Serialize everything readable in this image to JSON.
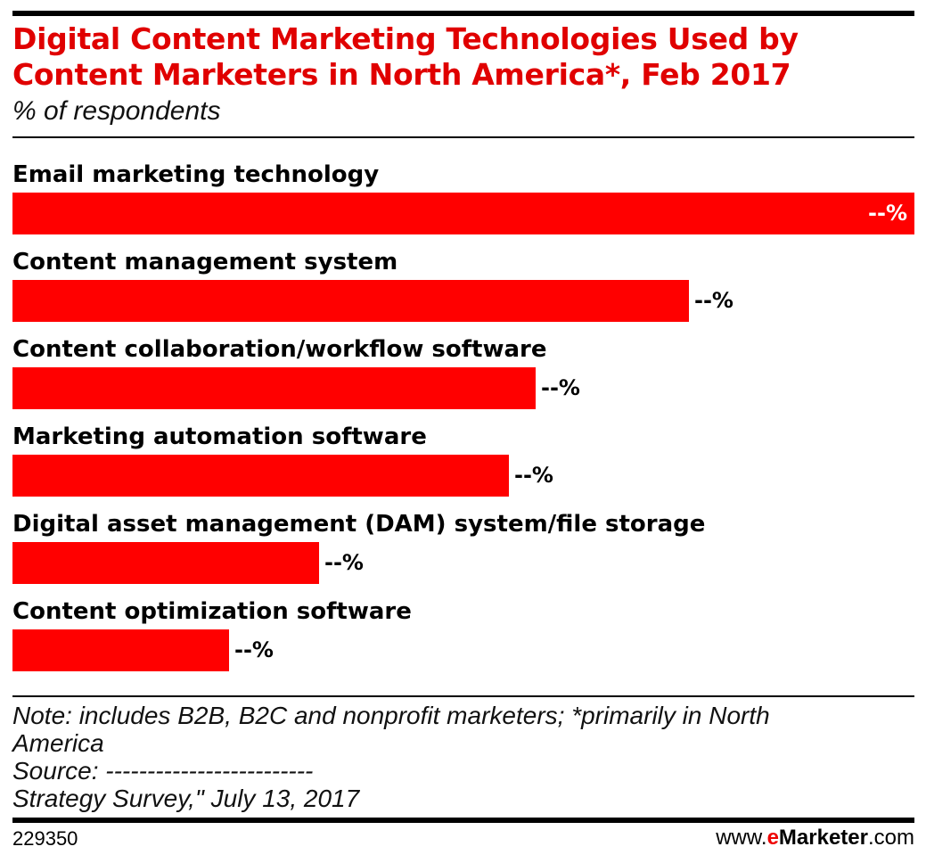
{
  "chart_data": {
    "type": "bar",
    "orientation": "horizontal",
    "title": "Digital Content Marketing Technologies Used by Content Marketers in North America*, Feb 2017",
    "subtitle": "% of respondents",
    "categories": [
      "Email marketing technology",
      "Content management system",
      "Content collaboration/workflow software",
      "Marketing automation software",
      "Digital asset management (DAM) system/file storage",
      "Content optimization software"
    ],
    "values_relative_to_max": [
      1.0,
      0.75,
      0.58,
      0.55,
      0.34,
      0.24
    ],
    "value_labels": [
      "--%",
      "--%",
      "--%",
      "--%",
      "--%",
      "--%"
    ],
    "bar_color": "#ff0000",
    "title_color": "#e00000",
    "grid": false,
    "legend": "none"
  },
  "footer": {
    "note_line1": "Note: includes B2B, B2C and nonprofit marketers; *primarily in North",
    "note_line2": "America",
    "source": "Source: -------------------------",
    "source_line2": "Strategy Survey,\" July 13, 2017",
    "chart_id": "229350",
    "logo_prefix": "www.",
    "logo_e": "e",
    "logo_name": "Marketer",
    "logo_suffix": ".com"
  }
}
